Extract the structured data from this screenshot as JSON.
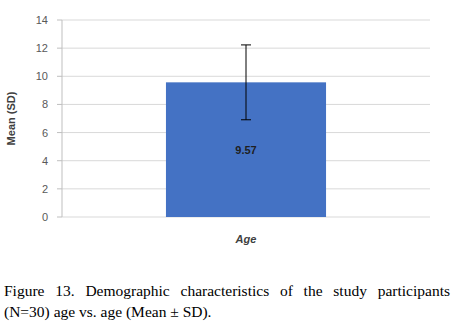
{
  "chart_data": {
    "type": "bar",
    "title": "Figure 13. Demographic characteristics of the study participants (N=30) age vs. age (Mean ± SD).",
    "ylabel": "Mean (SD)",
    "categories": [
      "Age"
    ],
    "values": [
      9.57
    ],
    "errors": [
      2.66
    ],
    "color": "#4472c4",
    "ylim": [
      0,
      14
    ],
    "yticks": [
      0,
      2,
      4,
      6,
      8,
      10,
      12,
      14
    ],
    "grid": true,
    "data_labels": true
  }
}
